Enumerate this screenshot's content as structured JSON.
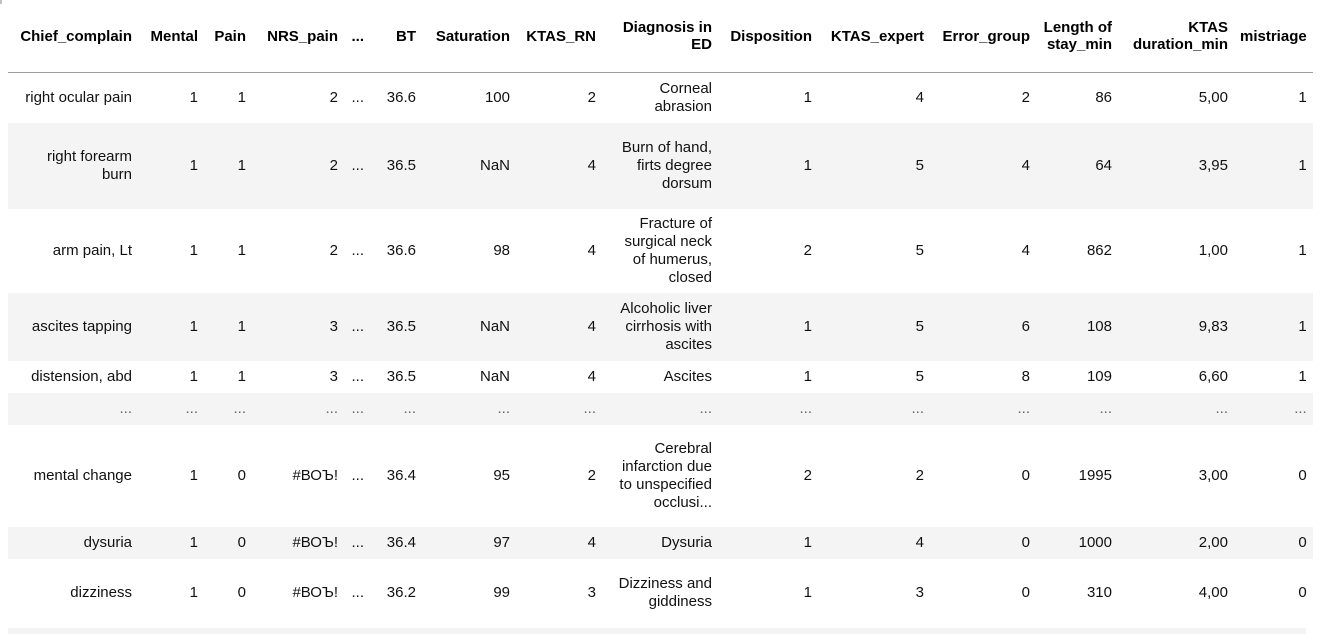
{
  "dataframe": {
    "columns": [
      "Chief_complain",
      "Mental",
      "Pain",
      "NRS_pain",
      "...",
      "BT",
      "Saturation",
      "KTAS_RN",
      "Diagnosis in ED",
      "Disposition",
      "KTAS_expert",
      "Error_group",
      "Length of stay_min",
      "KTAS duration_min",
      "mistriage"
    ],
    "rows": [
      [
        "right ocular pain",
        "1",
        "1",
        "2",
        "...",
        "36.6",
        "100",
        "2",
        "Corneal abrasion",
        "1",
        "4",
        "2",
        "86",
        "5,00",
        "1"
      ],
      [
        "right forearm burn",
        "1",
        "1",
        "2",
        "...",
        "36.5",
        "NaN",
        "4",
        "Burn of hand, firts degree dorsum",
        "1",
        "5",
        "4",
        "64",
        "3,95",
        "1"
      ],
      [
        "arm pain, Lt",
        "1",
        "1",
        "2",
        "...",
        "36.6",
        "98",
        "4",
        "Fracture of surgical neck of humerus, closed",
        "2",
        "5",
        "4",
        "862",
        "1,00",
        "1"
      ],
      [
        "ascites tapping",
        "1",
        "1",
        "3",
        "...",
        "36.5",
        "NaN",
        "4",
        "Alcoholic liver cirrhosis with ascites",
        "1",
        "5",
        "6",
        "108",
        "9,83",
        "1"
      ],
      [
        "distension, abd",
        "1",
        "1",
        "3",
        "...",
        "36.5",
        "NaN",
        "4",
        "Ascites",
        "1",
        "5",
        "8",
        "109",
        "6,60",
        "1"
      ],
      [
        "...",
        "...",
        "...",
        "...",
        "...",
        "...",
        "...",
        "...",
        "...",
        "...",
        "...",
        "...",
        "...",
        "...",
        "..."
      ],
      [
        "mental change",
        "1",
        "0",
        "#ВОЪ!",
        "...",
        "36.4",
        "95",
        "2",
        "Cerebral infarction due to unspecified occlusi...",
        "2",
        "2",
        "0",
        "1995",
        "3,00",
        "0"
      ],
      [
        "dysuria",
        "1",
        "0",
        "#ВОЪ!",
        "...",
        "36.4",
        "97",
        "4",
        "Dysuria",
        "1",
        "4",
        "0",
        "1000",
        "2,00",
        "0"
      ],
      [
        "dizziness",
        "1",
        "0",
        "#ВОЪ!",
        "...",
        "36.2",
        "99",
        "3",
        "Dizziness and giddiness",
        "1",
        "3",
        "0",
        "310",
        "4,00",
        "0"
      ]
    ]
  }
}
